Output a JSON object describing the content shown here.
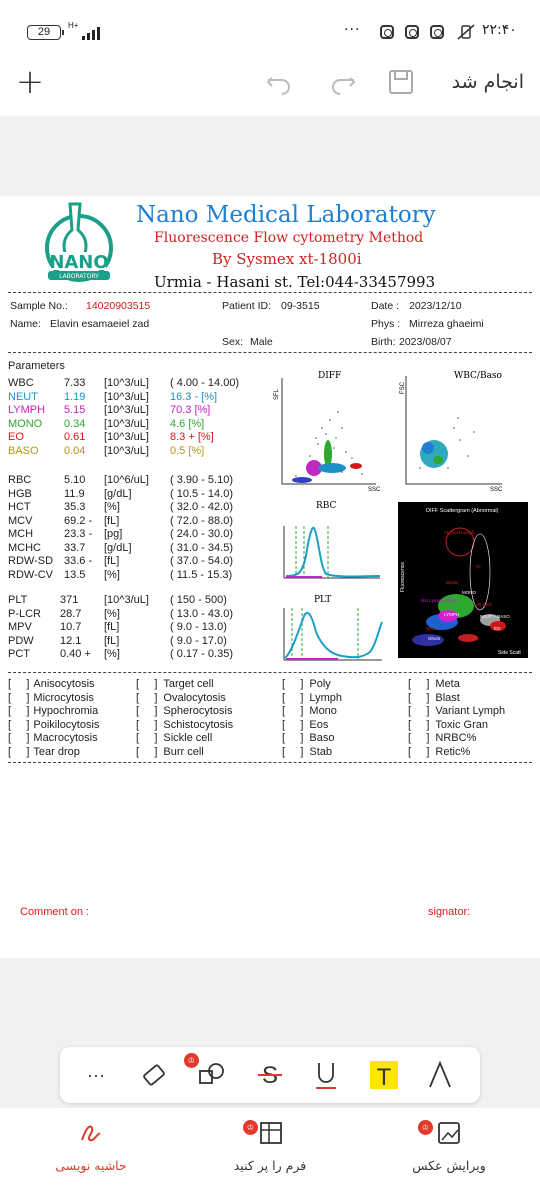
{
  "status_bar": {
    "battery": "29",
    "network": "H+",
    "clock": "۲۲:۴۰",
    "more": "···"
  },
  "toolbar": {
    "add": "+",
    "done_label": "انجام شد"
  },
  "report": {
    "title": "Nano Medical Laboratory",
    "subtitle1": "Fluorescence Flow cytometry Method",
    "subtitle2": "By Sysmex xt-1800i",
    "address": "Urmia - Hasani st. Tel:044-33457993",
    "logo_text": "NANO",
    "logo_sub": "LABORATORY",
    "sample_label": "Sample No.:",
    "sample_no": "14020903515",
    "patient_id_label": "Patient ID:",
    "patient_id": "09-3515",
    "date_label": "Date :",
    "date": "2023/12/10",
    "name_label": "Name:",
    "name": "Elavin esamaeiel zad",
    "phys_label": "Phys :",
    "phys": "Mirreza ghaeimi",
    "sex_label": "Sex:",
    "sex": "Male",
    "birth_label": "Birth:",
    "birth": "2023/08/07",
    "params_heading": "Parameters",
    "wbc_group": [
      {
        "name": "WBC",
        "value": "7.33",
        "unit": "[10^3/uL]",
        "range": "( 4.00 - 14.00)",
        "pct": "",
        "color": "#222222"
      },
      {
        "name": "NEUT",
        "value": "1.19",
        "unit": "[10^3/uL]",
        "range": "16.3 - [%]",
        "pct": "",
        "color": "#1e90c8"
      },
      {
        "name": "LYMPH",
        "value": "5.15",
        "unit": "[10^3/uL]",
        "range": "70.3 [%]",
        "pct": "",
        "color": "#c026c0"
      },
      {
        "name": "MONO",
        "value": "0.34",
        "unit": "[10^3/uL]",
        "range": "4.6 [%]",
        "pct": "",
        "color": "#2fa82f"
      },
      {
        "name": "EO",
        "value": "0.61",
        "unit": "[10^3/uL]",
        "range": "8.3 + [%]",
        "pct": "",
        "color": "#d01818"
      },
      {
        "name": "BASO",
        "value": "0.04",
        "unit": "[10^3/uL]",
        "range": "0.5 [%]",
        "pct": "",
        "color": "#b09a10"
      }
    ],
    "rbc_group": [
      {
        "name": "RBC",
        "value": "5.10",
        "unit": "[10^6/uL]",
        "range": "( 3.90 - 5.10)"
      },
      {
        "name": "HGB",
        "value": "11.9",
        "unit": "[g/dL]",
        "range": "( 10.5 - 14.0)"
      },
      {
        "name": "HCT",
        "value": "35.3",
        "unit": "[%]",
        "range": "( 32.0 - 42.0)"
      },
      {
        "name": "MCV",
        "value": "69.2 -",
        "unit": "[fL]",
        "range": "( 72.0 - 88.0)"
      },
      {
        "name": "MCH",
        "value": "23.3 -",
        "unit": "[pg]",
        "range": "( 24.0 - 30.0)"
      },
      {
        "name": "MCHC",
        "value": "33.7",
        "unit": "[g/dL]",
        "range": "( 31.0 - 34.5)"
      },
      {
        "name": "RDW-SD",
        "value": "33.6 -",
        "unit": "[fL]",
        "range": "( 37.0 - 54.0)"
      },
      {
        "name": "RDW-CV",
        "value": "13.5",
        "unit": "[%]",
        "range": "( 11.5 - 15.3)"
      }
    ],
    "plt_group": [
      {
        "name": "PLT",
        "value": "371",
        "unit": "[10^3/uL]",
        "range": "( 150 - 500)"
      },
      {
        "name": "P-LCR",
        "value": "28.7",
        "unit": "[%]",
        "range": "( 13.0 - 43.0)"
      },
      {
        "name": "MPV",
        "value": "10.7",
        "unit": "[fL]",
        "range": "( 9.0 - 13.0)"
      },
      {
        "name": "PDW",
        "value": "12.1",
        "unit": "[fL]",
        "range": "( 9.0 - 17.0)"
      },
      {
        "name": "PCT",
        "value": "0.40 +",
        "unit": "[%]",
        "range": "( 0.17 - 0.35)"
      }
    ],
    "plots": {
      "diff": "DIFF",
      "wbc_baso": "WBC/Baso",
      "rbc": "RBC",
      "plt": "PLT",
      "sfl": "SFL",
      "fsc": "FSC",
      "ssc": "SSC",
      "scatter_title": "DIFF Scattergram (Abnormal)",
      "fluorescence": "Fluorescence",
      "side_scatter": "Side Scatt",
      "scatter_labels": [
        "Atypical Lymph",
        "IG",
        "Blasts",
        "MONO",
        "Abn Lymph/ Blasts",
        "Left Shift",
        "LYMPH",
        "NEUT + BASO",
        "NRBC",
        "EO",
        "Ghost",
        "IG"
      ]
    },
    "morph_cols": [
      [
        "Anisocytosis",
        "Microcytosis",
        "Hypochromia",
        "Poikilocytosis",
        "Macrocytosis",
        "Tear drop"
      ],
      [
        "Target cell",
        "Ovalocytosis",
        "Spherocytosis",
        "Schistocytosis",
        "Sickle cell",
        "Burr cell"
      ],
      [
        "Poly",
        "Lymph",
        "Mono",
        "Eos",
        "Baso",
        "Stab"
      ],
      [
        "Meta",
        "Blast",
        "Variant Lymph",
        "Toxic Gran",
        "NRBC%",
        "Retic%"
      ]
    ],
    "comment": "Comment on :",
    "signator": "signator:"
  },
  "edit_tools": {
    "more": "···"
  },
  "bottom_nav": {
    "annotate": "حاشیه نویسی",
    "fill_form": "فرم را پر کنید",
    "edit_image": "ویرایش عکس"
  },
  "colors": {
    "accent": "#e2392c",
    "title_blue": "#1e7fd3",
    "highlight": "#ffe600"
  }
}
